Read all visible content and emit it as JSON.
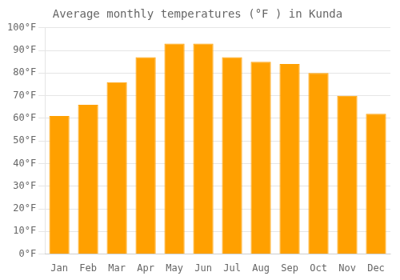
{
  "chart_data": {
    "type": "bar",
    "title": "Average monthly temperatures (°F ) in Kunda",
    "categories": [
      "Jan",
      "Feb",
      "Mar",
      "Apr",
      "May",
      "Jun",
      "Jul",
      "Aug",
      "Sep",
      "Oct",
      "Nov",
      "Dec"
    ],
    "values": [
      61,
      66,
      76,
      87,
      93,
      93,
      87,
      85,
      84,
      80,
      70,
      62
    ],
    "color": "#FFA000",
    "ylim": [
      0,
      100
    ],
    "yticks": [
      {
        "value": 0,
        "label": "0°F"
      },
      {
        "value": 10,
        "label": "10°F"
      },
      {
        "value": 20,
        "label": "20°F"
      },
      {
        "value": 30,
        "label": "30°F"
      },
      {
        "value": 40,
        "label": "40°F"
      },
      {
        "value": 50,
        "label": "50°F"
      },
      {
        "value": 60,
        "label": "60°F"
      },
      {
        "value": 70,
        "label": "70°F"
      },
      {
        "value": 80,
        "label": "80°F"
      },
      {
        "value": 90,
        "label": "90°F"
      },
      {
        "value": 100,
        "label": "100°F"
      }
    ],
    "grid": true
  }
}
